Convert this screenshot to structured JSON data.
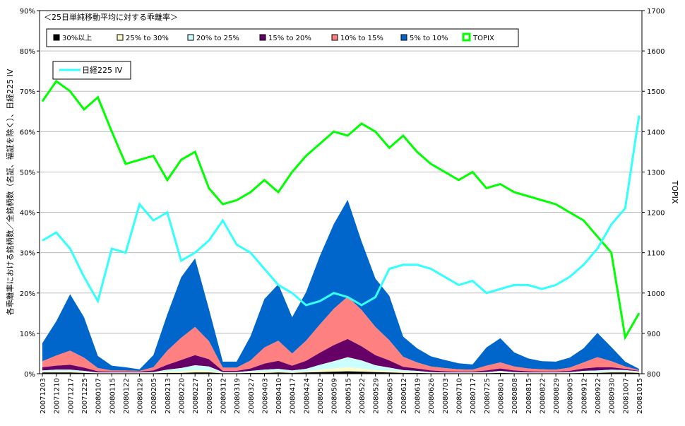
{
  "chart_data": {
    "type": "area",
    "title": "＜25日単純移動平均に対する乖離率＞",
    "ylabel_left": "各乖離率における銘柄数／全銘柄数（名証、福証を除く）、日経225 IV",
    "ylabel_right": "TOPIX",
    "ylim_left": [
      0,
      90
    ],
    "ylim_right": [
      800,
      1700
    ],
    "left_ticks": [
      "0%",
      "10%",
      "20%",
      "30%",
      "40%",
      "50%",
      "60%",
      "70%",
      "80%",
      "90%"
    ],
    "right_ticks": [
      "800",
      "900",
      "1000",
      "1100",
      "1200",
      "1300",
      "1400",
      "1500",
      "1600",
      "1700"
    ],
    "x_tick_labels": [
      "20071203",
      "20071210",
      "20071217",
      "20071225",
      "20080107",
      "20080115",
      "20080122",
      "20080129",
      "20080205",
      "20080213",
      "20080220",
      "20080227",
      "20080305",
      "20080312",
      "20080319",
      "20080327",
      "20080403",
      "20080410",
      "20080417",
      "20080424",
      "20080502",
      "20080509",
      "20080515",
      "20080522",
      "20080529",
      "20080605",
      "20080612",
      "20080619",
      "20080626",
      "20080703",
      "20080710",
      "20080717",
      "20080725",
      "20080801",
      "20080808",
      "20080815",
      "20080822",
      "20080829",
      "20080905",
      "20080912",
      "20080922",
      "20080930",
      "20081007",
      "20081015"
    ],
    "grid": true,
    "legend_position": "top-left",
    "colors": {
      "30%以上": "#000000",
      "25% to 30%": "#ffffcc",
      "20% to 25%": "#ccffff",
      "15% to 20%": "#660066",
      "10% to 15%": "#ff8080",
      "5% to 10%": "#0066cc",
      "TOPIX": "#00ff00",
      "日経225 IV": "#33ffff"
    },
    "legend": [
      "30%以上",
      "25% to 30%",
      "20% to 25%",
      "15% to 20%",
      "10% to 15%",
      "5% to 10%",
      "TOPIX"
    ],
    "legend2": [
      "日経225 IV"
    ],
    "stacked_series": [
      {
        "name": "30%以上",
        "values": [
          0.3,
          0.3,
          0.3,
          0.2,
          0.1,
          0.1,
          0.1,
          0.1,
          0.1,
          0.2,
          0.2,
          0.3,
          0.3,
          0.1,
          0.1,
          0.2,
          0.2,
          0.3,
          0.2,
          0.3,
          0.4,
          0.5,
          0.6,
          0.5,
          0.4,
          0.3,
          0.2,
          0.2,
          0.1,
          0.1,
          0.1,
          0.1,
          0.1,
          0.2,
          0.1,
          0.1,
          0.1,
          0.1,
          0.1,
          0.2,
          0.2,
          0.3,
          0.3,
          0.2
        ]
      },
      {
        "name": "25% to 30%",
        "values": [
          0.2,
          0.3,
          0.3,
          0.2,
          0.1,
          0.1,
          0.1,
          0.1,
          0.1,
          0.3,
          0.4,
          0.6,
          0.5,
          0.1,
          0.1,
          0.2,
          0.3,
          0.3,
          0.2,
          0.3,
          0.6,
          0.8,
          1.0,
          0.8,
          0.5,
          0.4,
          0.3,
          0.2,
          0.1,
          0.1,
          0.1,
          0.1,
          0.1,
          0.2,
          0.1,
          0.1,
          0.1,
          0.1,
          0.1,
          0.2,
          0.2,
          0.3,
          0.3,
          0.2
        ]
      },
      {
        "name": "20% to 25%",
        "values": [
          0.3,
          0.4,
          0.4,
          0.3,
          0.1,
          0.1,
          0.1,
          0.1,
          0.2,
          0.5,
          0.8,
          1.2,
          1.0,
          0.2,
          0.2,
          0.3,
          0.5,
          0.6,
          0.4,
          0.6,
          1.2,
          1.8,
          2.5,
          2.0,
          1.2,
          0.8,
          0.4,
          0.3,
          0.2,
          0.1,
          0.1,
          0.1,
          0.2,
          0.3,
          0.2,
          0.1,
          0.1,
          0.1,
          0.2,
          0.3,
          0.4,
          0.4,
          0.3,
          0.2
        ]
      },
      {
        "name": "15% to 20%",
        "values": [
          0.8,
          1.0,
          1.2,
          0.8,
          0.3,
          0.2,
          0.2,
          0.2,
          0.4,
          1.2,
          2.0,
          2.5,
          1.8,
          0.3,
          0.3,
          0.6,
          1.5,
          2.0,
          1.2,
          2.0,
          3.0,
          4.0,
          4.5,
          3.5,
          2.5,
          1.8,
          0.8,
          0.6,
          0.4,
          0.3,
          0.2,
          0.2,
          0.4,
          0.6,
          0.4,
          0.3,
          0.2,
          0.2,
          0.3,
          0.6,
          0.8,
          0.6,
          0.3,
          0.1
        ]
      },
      {
        "name": "10% to 15%",
        "values": [
          1.5,
          2.5,
          3.5,
          2.5,
          0.8,
          0.3,
          0.3,
          0.2,
          0.8,
          3.5,
          5.5,
          7.0,
          4.5,
          0.8,
          0.8,
          2.0,
          4.0,
          5.0,
          3.0,
          5.0,
          7.0,
          9.0,
          10.5,
          9.0,
          7.0,
          5.0,
          2.5,
          1.5,
          1.0,
          0.8,
          0.6,
          0.5,
          1.2,
          1.5,
          1.0,
          0.7,
          0.6,
          0.5,
          0.8,
          1.5,
          2.5,
          1.5,
          0.6,
          0.2
        ]
      },
      {
        "name": "5% to 10%",
        "values": [
          4.5,
          8.5,
          14.0,
          10.0,
          3.0,
          1.2,
          0.8,
          0.4,
          3.0,
          9.0,
          15.0,
          17.0,
          8.0,
          1.5,
          1.5,
          6.0,
          12.0,
          14.0,
          9.0,
          12.0,
          17.0,
          21.0,
          24.0,
          17.0,
          12.0,
          11.0,
          5.0,
          3.5,
          2.5,
          2.0,
          1.5,
          1.3,
          4.5,
          6.0,
          3.5,
          2.5,
          2.0,
          2.0,
          2.5,
          3.5,
          6.0,
          3.5,
          1.2,
          0.3
        ]
      }
    ],
    "topix": [
      1475,
      1525,
      1500,
      1455,
      1485,
      1400,
      1320,
      1330,
      1340,
      1280,
      1330,
      1350,
      1260,
      1220,
      1230,
      1250,
      1280,
      1250,
      1300,
      1340,
      1370,
      1400,
      1390,
      1420,
      1400,
      1360,
      1390,
      1350,
      1320,
      1300,
      1280,
      1300,
      1260,
      1270,
      1250,
      1240,
      1230,
      1220,
      1200,
      1180,
      1140,
      1100,
      890,
      950
    ],
    "iv": [
      33,
      35,
      31,
      24,
      18,
      31,
      30,
      42,
      38,
      40,
      28,
      30,
      33,
      38,
      32,
      30,
      26,
      22,
      20,
      17,
      18,
      20,
      19,
      17,
      19,
      26,
      27,
      27,
      26,
      24,
      22,
      23,
      20,
      21,
      22,
      22,
      21,
      22,
      24,
      27,
      31,
      37,
      41,
      64
    ]
  }
}
